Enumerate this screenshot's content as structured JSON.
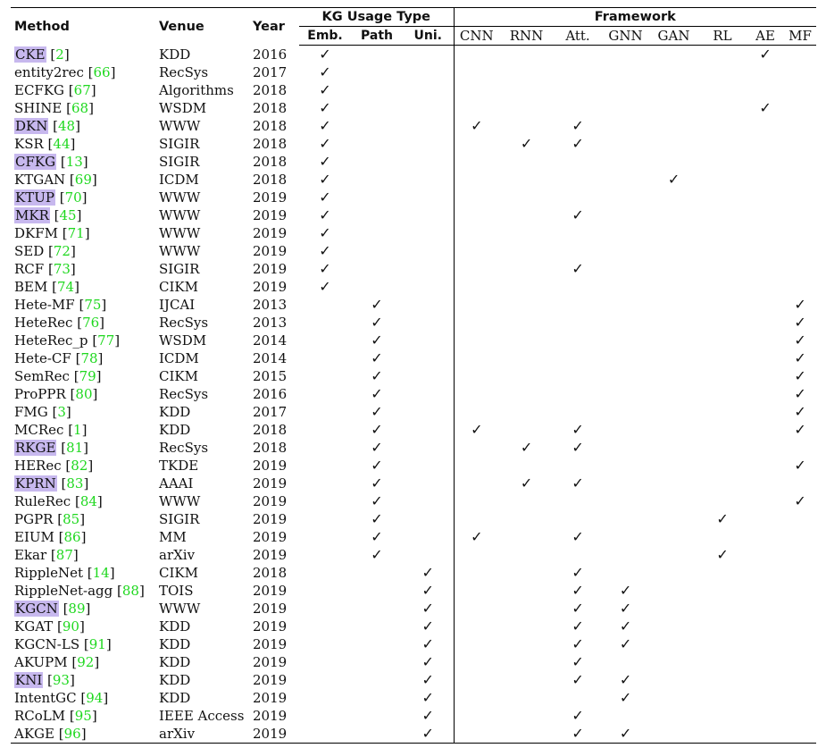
{
  "headers": {
    "method": "Method",
    "venue": "Venue",
    "year": "Year",
    "kg_usage_type": "KG Usage Type",
    "framework": "Framework",
    "kg_sub": [
      "Emb.",
      "Path",
      "Uni."
    ],
    "framework_sub": [
      "CNN",
      "RNN",
      "Att.",
      "GNN",
      "GAN",
      "RL",
      "AE",
      "MF"
    ]
  },
  "checkmark_glyph": "✓",
  "rows": [
    {
      "name": "CKE",
      "cite": "2",
      "highlight": true,
      "venue": "KDD",
      "year": "2016",
      "marks": [
        "Emb.",
        "AE"
      ]
    },
    {
      "name": "entity2rec",
      "cite": "66",
      "highlight": false,
      "venue": "RecSys",
      "year": "2017",
      "marks": [
        "Emb."
      ]
    },
    {
      "name": "ECFKG",
      "cite": "67",
      "highlight": false,
      "venue": "Algorithms",
      "year": "2018",
      "marks": [
        "Emb."
      ]
    },
    {
      "name": "SHINE",
      "cite": "68",
      "highlight": false,
      "venue": "WSDM",
      "year": "2018",
      "marks": [
        "Emb.",
        "AE"
      ]
    },
    {
      "name": "DKN",
      "cite": "48",
      "highlight": true,
      "venue": "WWW",
      "year": "2018",
      "marks": [
        "Emb.",
        "CNN",
        "Att."
      ]
    },
    {
      "name": "KSR",
      "cite": "44",
      "highlight": false,
      "venue": "SIGIR",
      "year": "2018",
      "marks": [
        "Emb.",
        "RNN",
        "Att."
      ]
    },
    {
      "name": "CFKG",
      "cite": "13",
      "highlight": true,
      "venue": "SIGIR",
      "year": "2018",
      "marks": [
        "Emb."
      ]
    },
    {
      "name": "KTGAN",
      "cite": "69",
      "highlight": false,
      "venue": "ICDM",
      "year": "2018",
      "marks": [
        "Emb.",
        "GAN"
      ]
    },
    {
      "name": "KTUP",
      "cite": "70",
      "highlight": true,
      "venue": "WWW",
      "year": "2019",
      "marks": [
        "Emb."
      ]
    },
    {
      "name": "MKR",
      "cite": "45",
      "highlight": true,
      "venue": "WWW",
      "year": "2019",
      "marks": [
        "Emb.",
        "Att."
      ]
    },
    {
      "name": "DKFM",
      "cite": "71",
      "highlight": false,
      "venue": "WWW",
      "year": "2019",
      "marks": [
        "Emb."
      ]
    },
    {
      "name": "SED",
      "cite": "72",
      "highlight": false,
      "venue": "WWW",
      "year": "2019",
      "marks": [
        "Emb."
      ]
    },
    {
      "name": "RCF",
      "cite": "73",
      "highlight": false,
      "venue": "SIGIR",
      "year": "2019",
      "marks": [
        "Emb.",
        "Att."
      ]
    },
    {
      "name": "BEM",
      "cite": "74",
      "highlight": false,
      "venue": "CIKM",
      "year": "2019",
      "marks": [
        "Emb."
      ]
    },
    {
      "name": "Hete-MF",
      "cite": "75",
      "highlight": false,
      "venue": "IJCAI",
      "year": "2013",
      "marks": [
        "Path",
        "MF"
      ]
    },
    {
      "name": "HeteRec",
      "cite": "76",
      "highlight": false,
      "venue": "RecSys",
      "year": "2013",
      "marks": [
        "Path",
        "MF"
      ]
    },
    {
      "name": "HeteRec_p",
      "cite": "77",
      "highlight": false,
      "venue": "WSDM",
      "year": "2014",
      "marks": [
        "Path",
        "MF"
      ]
    },
    {
      "name": "Hete-CF",
      "cite": "78",
      "highlight": false,
      "venue": "ICDM",
      "year": "2014",
      "marks": [
        "Path",
        "MF"
      ]
    },
    {
      "name": "SemRec",
      "cite": "79",
      "highlight": false,
      "venue": "CIKM",
      "year": "2015",
      "marks": [
        "Path",
        "MF"
      ]
    },
    {
      "name": "ProPPR",
      "cite": "80",
      "highlight": false,
      "venue": "RecSys",
      "year": "2016",
      "marks": [
        "Path",
        "MF"
      ]
    },
    {
      "name": "FMG",
      "cite": "3",
      "highlight": false,
      "venue": "KDD",
      "year": "2017",
      "marks": [
        "Path",
        "MF"
      ]
    },
    {
      "name": "MCRec",
      "cite": "1",
      "highlight": false,
      "venue": "KDD",
      "year": "2018",
      "marks": [
        "Path",
        "CNN",
        "Att.",
        "MF"
      ]
    },
    {
      "name": "RKGE",
      "cite": "81",
      "highlight": true,
      "venue": "RecSys",
      "year": "2018",
      "marks": [
        "Path",
        "RNN",
        "Att."
      ]
    },
    {
      "name": "HERec",
      "cite": "82",
      "highlight": false,
      "venue": "TKDE",
      "year": "2019",
      "marks": [
        "Path",
        "MF"
      ]
    },
    {
      "name": "KPRN",
      "cite": "83",
      "highlight": true,
      "venue": "AAAI",
      "year": "2019",
      "marks": [
        "Path",
        "RNN",
        "Att."
      ]
    },
    {
      "name": "RuleRec",
      "cite": "84",
      "highlight": false,
      "venue": "WWW",
      "year": "2019",
      "marks": [
        "Path",
        "MF"
      ]
    },
    {
      "name": "PGPR",
      "cite": "85",
      "highlight": false,
      "venue": "SIGIR",
      "year": "2019",
      "marks": [
        "Path",
        "RL"
      ]
    },
    {
      "name": "EIUM",
      "cite": "86",
      "highlight": false,
      "venue": "MM",
      "year": "2019",
      "marks": [
        "Path",
        "CNN",
        "Att."
      ]
    },
    {
      "name": "Ekar",
      "cite": "87",
      "highlight": false,
      "venue": "arXiv",
      "year": "2019",
      "marks": [
        "Path",
        "RL"
      ]
    },
    {
      "name": "RippleNet",
      "cite": "14",
      "highlight": false,
      "venue": "CIKM",
      "year": "2018",
      "marks": [
        "Uni.",
        "Att."
      ]
    },
    {
      "name": "RippleNet-agg",
      "cite": "88",
      "highlight": false,
      "venue": "TOIS",
      "year": "2019",
      "marks": [
        "Uni.",
        "Att.",
        "GNN"
      ]
    },
    {
      "name": "KGCN",
      "cite": "89",
      "highlight": true,
      "venue": "WWW",
      "year": "2019",
      "marks": [
        "Uni.",
        "Att.",
        "GNN"
      ]
    },
    {
      "name": "KGAT",
      "cite": "90",
      "highlight": false,
      "venue": "KDD",
      "year": "2019",
      "marks": [
        "Uni.",
        "Att.",
        "GNN"
      ]
    },
    {
      "name": "KGCN-LS",
      "cite": "91",
      "highlight": false,
      "venue": "KDD",
      "year": "2019",
      "marks": [
        "Uni.",
        "Att.",
        "GNN"
      ]
    },
    {
      "name": "AKUPM",
      "cite": "92",
      "highlight": false,
      "venue": "KDD",
      "year": "2019",
      "marks": [
        "Uni.",
        "Att."
      ]
    },
    {
      "name": "KNI",
      "cite": "93",
      "highlight": true,
      "venue": "KDD",
      "year": "2019",
      "marks": [
        "Uni.",
        "Att.",
        "GNN"
      ]
    },
    {
      "name": "IntentGC",
      "cite": "94",
      "highlight": false,
      "venue": "KDD",
      "year": "2019",
      "marks": [
        "Uni.",
        "GNN"
      ]
    },
    {
      "name": "RCoLM",
      "cite": "95",
      "highlight": false,
      "venue": "IEEE Access",
      "year": "2019",
      "marks": [
        "Uni.",
        "Att."
      ]
    },
    {
      "name": "AKGE",
      "cite": "96",
      "highlight": false,
      "venue": "arXiv",
      "year": "2019",
      "marks": [
        "Uni.",
        "Att.",
        "GNN"
      ]
    }
  ],
  "colors": {
    "citation": "#1fd81f",
    "highlight": "#c7b8ee",
    "rule": "#000000"
  }
}
